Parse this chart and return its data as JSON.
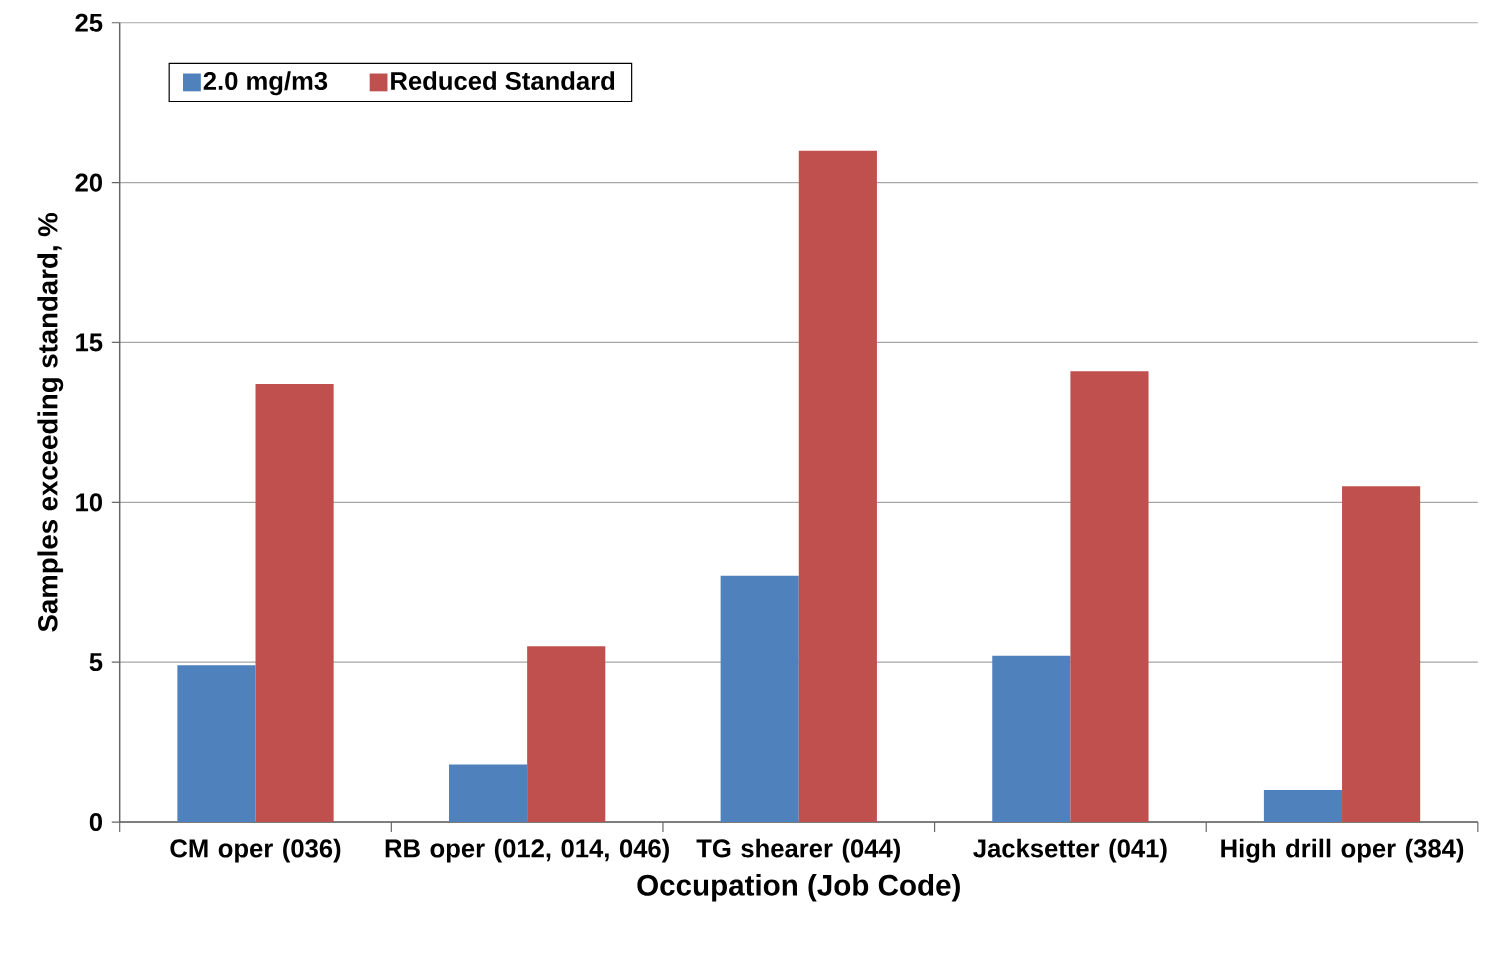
{
  "chart_data": {
    "type": "bar",
    "xlabel": "Occupation (Job Code)",
    "ylabel": "Samples exceeding standard, %",
    "categories": [
      "CM oper (036)",
      "RB oper (012, 014, 046)",
      "TG shearer (044)",
      "Jacksetter (041)",
      "High drill oper (384)"
    ],
    "series": [
      {
        "name": "2.0 mg/m3",
        "color": "#4f81bd",
        "values": [
          4.9,
          1.8,
          7.7,
          5.2,
          1.0
        ]
      },
      {
        "name": "Reduced Standard",
        "color": "#c0504d",
        "values": [
          13.7,
          5.5,
          21.0,
          14.1,
          10.5
        ]
      }
    ],
    "ylim": [
      0,
      25
    ],
    "yticks": [
      0,
      5,
      10,
      15,
      20,
      25
    ],
    "grid": "y",
    "legend": "top left"
  }
}
